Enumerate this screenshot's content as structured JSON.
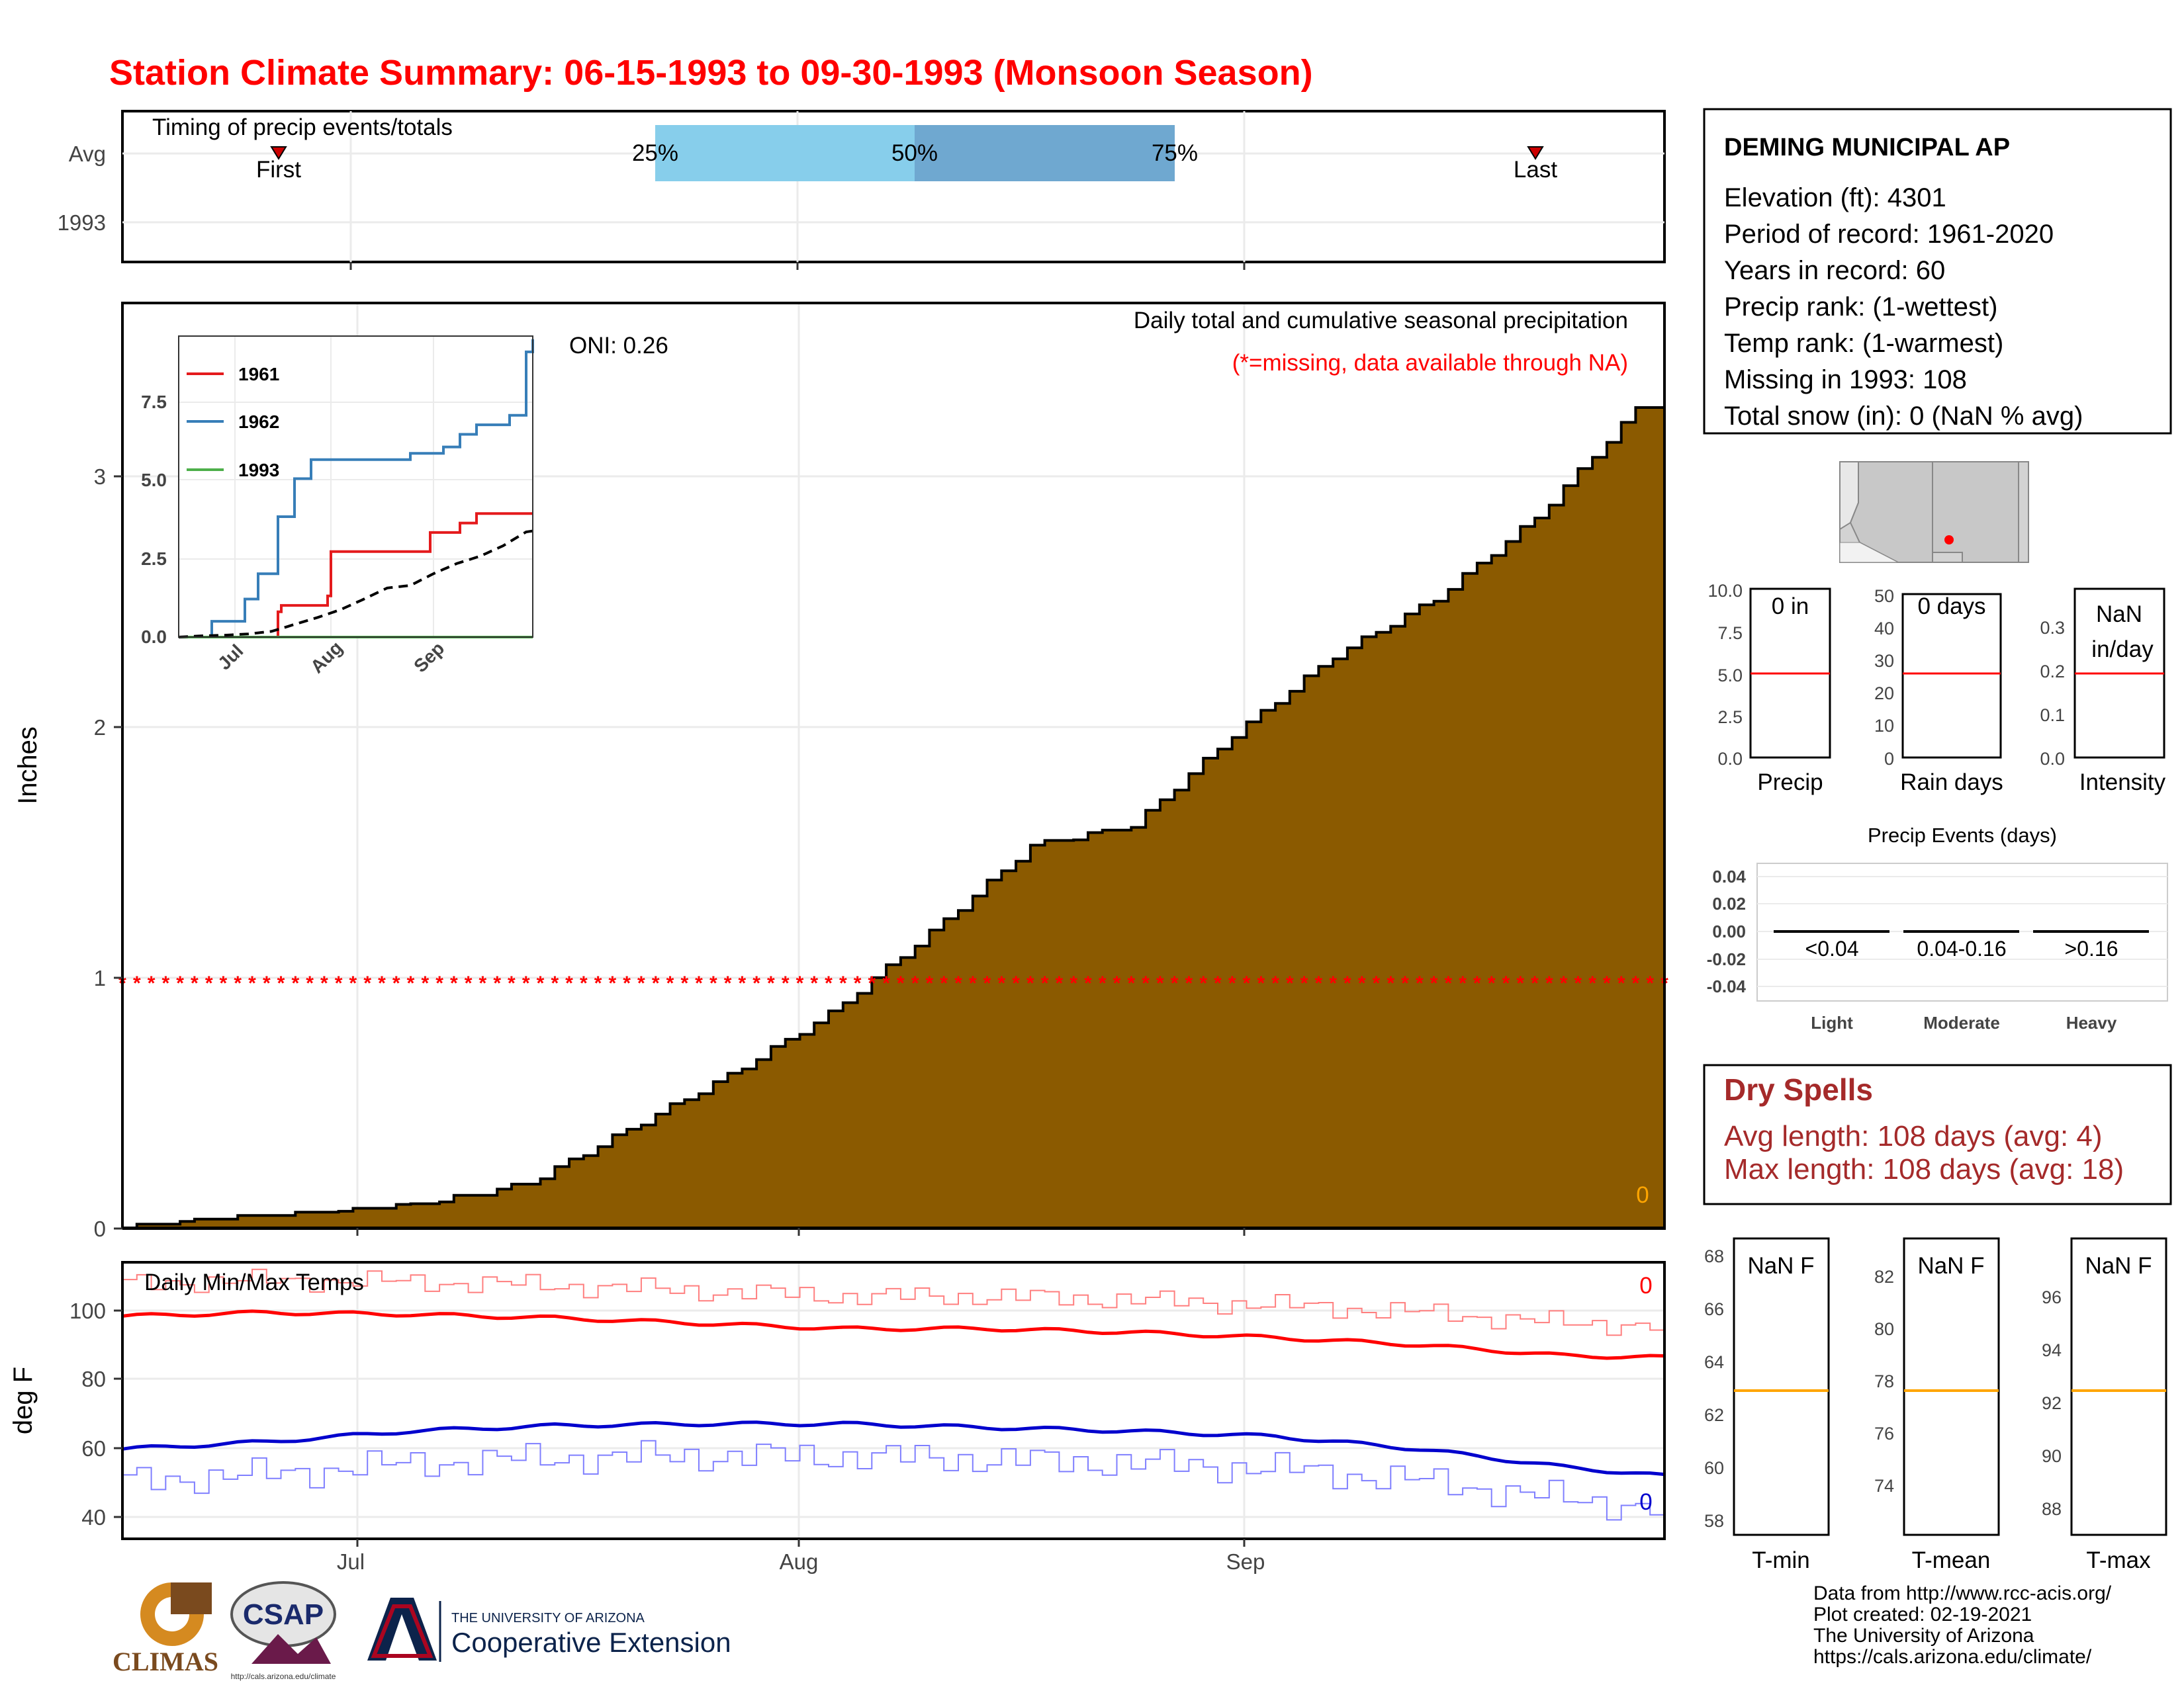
{
  "title": "Station Climate Summary: 06-15-1993 to 09-30-1993 (Monsoon Season)",
  "colors": {
    "title": "#ff0000",
    "precip_fill": "#8b5a00",
    "q_light": "#87ceeb",
    "q_dark": "#6fa8d0",
    "tmax": "#ff0000",
    "tmin": "#0000cd",
    "median": "#ffa500",
    "dry": "#a52a2a"
  },
  "timing": {
    "title": "Timing of precip events/totals",
    "rows": [
      "Avg",
      "1993"
    ],
    "first": "First",
    "last": "Last",
    "q25": "25%",
    "q50": "50%",
    "q75": "75%"
  },
  "main": {
    "ylabel": "Inches",
    "oni": "ONI: 0.26",
    "label1": "Daily total and cumulative seasonal precipitation",
    "label2": "(*=missing, data available through NA)",
    "zero": "0",
    "yticks": [
      "0",
      "1",
      "2",
      "3"
    ],
    "xticks": [
      "Jul",
      "Aug",
      "Sep"
    ]
  },
  "chart_data": [
    {
      "type": "area",
      "title": "Daily total and cumulative seasonal precipitation",
      "xlabel": "",
      "ylabel": "Inches",
      "ylim": [
        0,
        3.75
      ],
      "x_start": "06-15",
      "x_end": "09-30",
      "xticks": [
        "Jul",
        "Aug",
        "Sep"
      ],
      "x": [
        0,
        7,
        14,
        21,
        28,
        35,
        42,
        49,
        56,
        63,
        70,
        77,
        84,
        91,
        98,
        105,
        107
      ],
      "values": [
        0.0,
        0.04,
        0.06,
        0.1,
        0.18,
        0.4,
        0.62,
        0.87,
        1.2,
        1.55,
        1.63,
        2.0,
        2.32,
        2.55,
        2.88,
        3.32,
        3.35
      ],
      "missing_marker_y": 1.0
    },
    {
      "type": "line",
      "title": "",
      "series": [
        {
          "name": "1961",
          "x": [
            0,
            30,
            31,
            45,
            46,
            75,
            76,
            85,
            90,
            107
          ],
          "y": [
            0,
            0.8,
            1.0,
            1.3,
            2.7,
            2.7,
            3.3,
            3.6,
            3.9,
            3.9
          ]
        },
        {
          "name": "1962",
          "x": [
            0,
            10,
            20,
            24,
            30,
            35,
            40,
            70,
            80,
            85,
            90,
            100,
            105,
            107
          ],
          "y": [
            0,
            0.5,
            1.2,
            2.0,
            3.8,
            5.0,
            5.6,
            5.8,
            6.0,
            6.4,
            6.7,
            7.0,
            9.0,
            9.4
          ]
        },
        {
          "name": "1993",
          "x": [
            0,
            107
          ],
          "y": [
            0,
            0
          ]
        }
      ],
      "yticks": [
        "0.0",
        "2.5",
        "5.0",
        "7.5"
      ],
      "xticks": [
        "Jul",
        "Aug",
        "Sep"
      ],
      "ylim": [
        0,
        9.5
      ]
    },
    {
      "type": "bar",
      "title": "",
      "categories": [
        "Precip",
        "Rain days",
        "Intensity"
      ],
      "values_text": [
        "0 in",
        "0 days",
        "NaN in/day"
      ],
      "avg": [
        5.0,
        26,
        0.19
      ],
      "ylims": [
        [
          0,
          10
        ],
        [
          0,
          52
        ],
        [
          0,
          0.38
        ]
      ],
      "yticks": [
        [
          "0.0",
          "2.5",
          "5.0",
          "7.5",
          "10.0"
        ],
        [
          "0",
          "10",
          "20",
          "30",
          "40",
          "50"
        ],
        [
          "0.0",
          "0.1",
          "0.2",
          "0.3"
        ]
      ]
    },
    {
      "type": "bar",
      "title": "Precip Events (days)",
      "categories": [
        "Light",
        "Moderate",
        "Heavy"
      ],
      "range_labels": [
        "<0.04",
        "0.04-0.16",
        ">0.16"
      ],
      "values": [
        0,
        0,
        0
      ],
      "yticks": [
        "0.04",
        "0.02",
        "0.00",
        "-0.02",
        "-0.04"
      ]
    },
    {
      "type": "line",
      "title": "Daily Min/Max Temps",
      "ylabel": "deg F",
      "ylim": [
        35,
        112
      ],
      "yticks": [
        "40",
        "60",
        "80",
        "100"
      ],
      "xticks": [
        "Jul",
        "Aug",
        "Sep"
      ],
      "missing_counts": [
        "0",
        "0"
      ],
      "series": [
        {
          "name": "avg max",
          "x": [
            0,
            10,
            20,
            30,
            40,
            50,
            60,
            70,
            80,
            90,
            100,
            107
          ],
          "y": [
            97,
            98,
            97.5,
            96.5,
            95,
            93.5,
            93.5,
            92.5,
            91,
            89,
            86,
            85.5
          ]
        },
        {
          "name": "avg min",
          "x": [
            0,
            10,
            20,
            30,
            40,
            50,
            60,
            70,
            80,
            90,
            100,
            107
          ],
          "y": [
            60,
            62,
            65,
            66.5,
            67,
            67,
            66,
            65,
            63.5,
            60,
            55,
            52.5
          ]
        }
      ]
    },
    {
      "type": "bar",
      "title": "",
      "categories": [
        "T-min",
        "T-mean",
        "T-max"
      ],
      "values_text": [
        "NaN F",
        "NaN F",
        "NaN F"
      ],
      "avg": [
        63,
        77.7,
        92.5
      ],
      "ylims": [
        [
          57.5,
          68.5
        ],
        [
          71.8,
          83.2
        ],
        [
          86.5,
          97.5
        ]
      ],
      "yticks": [
        [
          "58",
          "60",
          "62",
          "64",
          "66",
          "68"
        ],
        [
          "74",
          "76",
          "78",
          "80",
          "82"
        ],
        [
          "88",
          "90",
          "92",
          "94",
          "96"
        ]
      ]
    }
  ],
  "station": {
    "name": "DEMING MUNICIPAL AP",
    "elevation": "Elevation (ft): 4301",
    "period": "Period of record: 1961-2020",
    "years": "Years in record: 60",
    "precip_rank": "Precip rank:  (1-wettest)",
    "temp_rank": "Temp rank:  (1-warmest)",
    "missing": "Missing in 1993: 108",
    "snow": "Total snow (in): 0 (NaN % avg)"
  },
  "small_bars": {
    "precip": {
      "value": "0 in",
      "label": "Precip"
    },
    "raindays": {
      "value": "0 days",
      "label": "Rain days"
    },
    "intensity": {
      "value1": "NaN",
      "value2": "in/day",
      "label": "Intensity"
    }
  },
  "events": {
    "title": "Precip Events (days)",
    "ranges": [
      "<0.04",
      "0.04-0.16",
      ">0.16"
    ],
    "cats": [
      "Light",
      "Moderate",
      "Heavy"
    ]
  },
  "dry": {
    "title": "Dry Spells",
    "avg": "Avg length: 108 days (avg: 4)",
    "max": "Max length: 108 days (avg: 18)"
  },
  "temps": {
    "title": "Daily Min/Max Temps",
    "ylabel": "deg F",
    "tmin": {
      "value": "NaN F",
      "label": "T-min"
    },
    "tmean": {
      "value": "NaN F",
      "label": "T-mean"
    },
    "tmax": {
      "value": "NaN F",
      "label": "T-max"
    }
  },
  "footer": {
    "line1": "Data from http://www.rcc-acis.org/",
    "line2": "Plot created: 02-19-2021",
    "line3": "The University of Arizona",
    "line4": "https://cals.arizona.edu/climate/"
  },
  "logos": {
    "climas": "CLIMAS",
    "csap": "CSAP",
    "csap_url": "http://cals.arizona.edu/climate",
    "ua_top": "THE UNIVERSITY OF ARIZONA",
    "ua_bottom": "Cooperative Extension"
  }
}
